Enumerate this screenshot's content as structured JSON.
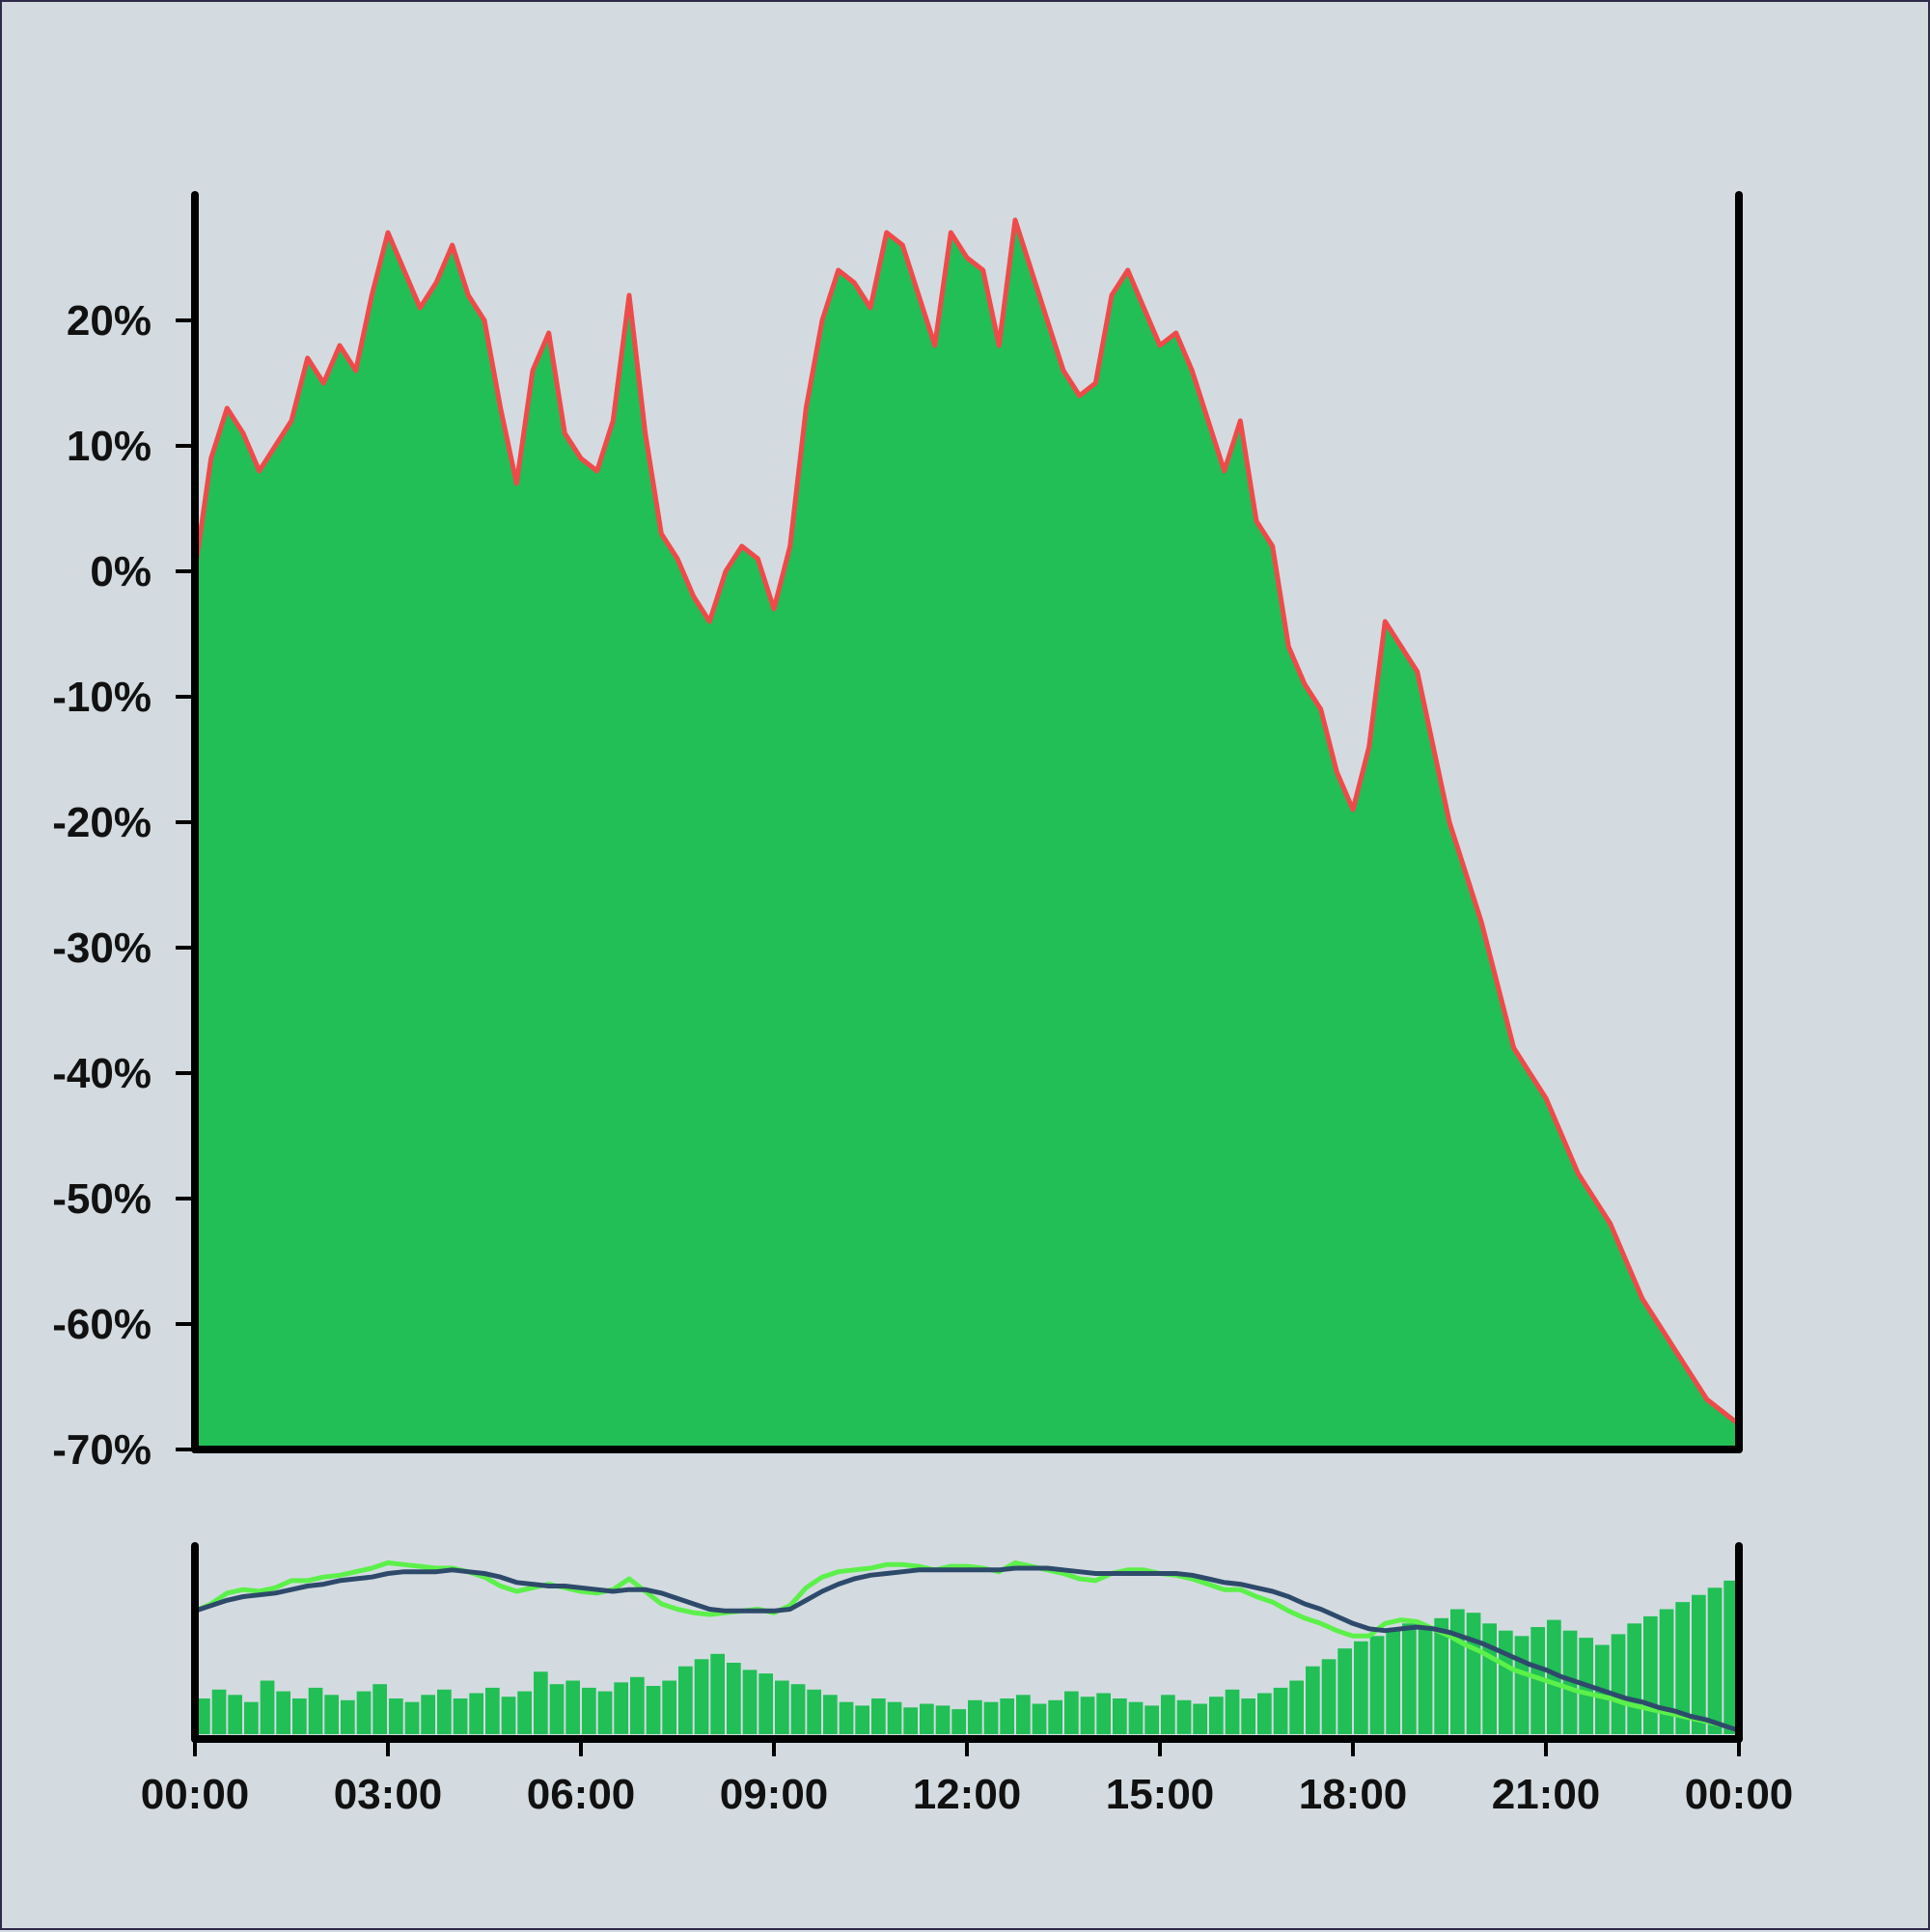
{
  "colors": {
    "background": "#d3dbe0",
    "area_fill": "#21bf56",
    "price_line": "#ef4a4a",
    "volume_bars": "#21bf56",
    "fast_ma": "#5cf04a",
    "slow_ma": "#2e4a6b",
    "axis": "#000000"
  },
  "chart_data": [
    {
      "type": "area",
      "y_tick_labels": [
        "20%",
        "10%",
        "0%",
        "-10%",
        "-20%",
        "-30%",
        "-40%",
        "-50%",
        "-60%",
        "-70%"
      ],
      "y_ticks": [
        20,
        10,
        0,
        -10,
        -20,
        -30,
        -40,
        -50,
        -60,
        -70
      ],
      "ylim": [
        -70,
        30
      ],
      "xlim_hours": [
        0,
        24
      ],
      "grid": false,
      "series": [
        {
          "x_hours": [
            0,
            0.25,
            0.5,
            0.75,
            1,
            1.25,
            1.5,
            1.75,
            2,
            2.25,
            2.5,
            2.75,
            3,
            3.25,
            3.5,
            3.75,
            4,
            4.25,
            4.5,
            4.75,
            5,
            5.25,
            5.5,
            5.75,
            6,
            6.25,
            6.5,
            6.75,
            7,
            7.25,
            7.5,
            7.75,
            8,
            8.25,
            8.5,
            8.75,
            9,
            9.25,
            9.5,
            9.75,
            10,
            10.25,
            10.5,
            10.75,
            11,
            11.25,
            11.5,
            11.75,
            12,
            12.25,
            12.5,
            12.75,
            13,
            13.25,
            13.5,
            13.75,
            14,
            14.25,
            14.5,
            14.75,
            15,
            15.25,
            15.5,
            15.75,
            16,
            16.25,
            16.5,
            16.75,
            17,
            17.25,
            17.5,
            17.75,
            18,
            18.25,
            18.5,
            18.75,
            19,
            19.25,
            19.5,
            19.75,
            20,
            20.25,
            20.5,
            20.75,
            21,
            21.25,
            21.5,
            21.75,
            22,
            22.25,
            22.5,
            22.75,
            23,
            23.25,
            23.5,
            23.75,
            24
          ],
          "values": [
            0,
            9,
            13,
            11,
            8,
            10,
            12,
            17,
            15,
            18,
            16,
            22,
            27,
            24,
            21,
            23,
            26,
            22,
            20,
            13,
            7,
            16,
            19,
            11,
            9,
            8,
            12,
            22,
            11,
            3,
            1,
            -2,
            -4,
            0,
            2,
            1,
            -3,
            2,
            13,
            20,
            24,
            23,
            21,
            27,
            26,
            22,
            18,
            27,
            25,
            24,
            18,
            28,
            24,
            20,
            16,
            14,
            15,
            22,
            24,
            21,
            18,
            19,
            16,
            12,
            8,
            12,
            4,
            2,
            -6,
            -9,
            -11,
            -16,
            -19,
            -14,
            -4,
            -6,
            -8,
            -14,
            -20,
            -24,
            -28,
            -33,
            -38,
            -40,
            -42,
            -45,
            -48,
            -50,
            -52,
            -55,
            -58,
            -60,
            -62,
            -64,
            -66,
            -67,
            -68
          ]
        }
      ]
    },
    {
      "type": "bar",
      "x_tick_labels": [
        "00:00",
        "03:00",
        "06:00",
        "09:00",
        "12:00",
        "15:00",
        "18:00",
        "21:00",
        "00:00"
      ],
      "x_ticks_hours": [
        0,
        3,
        6,
        9,
        12,
        15,
        18,
        21,
        24
      ],
      "xlim_hours": [
        0,
        24
      ],
      "volume_ylim": [
        0,
        100
      ],
      "volume": [
        20,
        25,
        22,
        18,
        30,
        24,
        20,
        26,
        22,
        19,
        24,
        28,
        20,
        18,
        22,
        25,
        20,
        23,
        26,
        21,
        24,
        35,
        28,
        30,
        26,
        24,
        29,
        32,
        27,
        30,
        38,
        42,
        45,
        40,
        36,
        34,
        30,
        28,
        25,
        22,
        18,
        16,
        20,
        18,
        15,
        17,
        16,
        14,
        19,
        18,
        20,
        22,
        17,
        19,
        24,
        21,
        23,
        20,
        18,
        16,
        22,
        19,
        17,
        21,
        25,
        20,
        23,
        26,
        30,
        38,
        42,
        48,
        52,
        55,
        58,
        62,
        60,
        65,
        70,
        68,
        62,
        58,
        55,
        60,
        64,
        58,
        54,
        50,
        56,
        62,
        66,
        70,
        74,
        78,
        82,
        86
      ],
      "lines_scale": [
        -70,
        30
      ],
      "lines": [
        {
          "values": [
            -1,
            3,
            9,
            11,
            10,
            12,
            16,
            16,
            18,
            19,
            21,
            23,
            26,
            25,
            24,
            23,
            23,
            21,
            18,
            13,
            10,
            12,
            14,
            12,
            10,
            9,
            11,
            17,
            10,
            3,
            0,
            -2,
            -3,
            -2,
            -1,
            0,
            -2,
            2,
            12,
            18,
            21,
            22,
            23,
            25,
            25,
            24,
            22,
            24,
            24,
            23,
            21,
            26,
            24,
            22,
            20,
            17,
            16,
            20,
            22,
            22,
            20,
            19,
            17,
            14,
            11,
            11,
            7,
            4,
            -1,
            -5,
            -8,
            -12,
            -15,
            -15,
            -8,
            -6,
            -7,
            -11,
            -15,
            -20,
            -24,
            -29,
            -34,
            -37,
            -40,
            -43,
            -46,
            -48,
            -50,
            -53,
            -55,
            -57,
            -59,
            -61,
            -63,
            -65,
            -68
          ]
        },
        {
          "values": [
            -1,
            2,
            5,
            7,
            8,
            9,
            11,
            13,
            14,
            16,
            17,
            18,
            20,
            21,
            21,
            21,
            22,
            21,
            20,
            18,
            15,
            14,
            13,
            13,
            12,
            11,
            10,
            11,
            11,
            9,
            6,
            3,
            0,
            -1,
            -1,
            -1,
            -1,
            0,
            5,
            10,
            14,
            17,
            19,
            20,
            21,
            22,
            22,
            22,
            22,
            22,
            22,
            23,
            23,
            23,
            22,
            21,
            20,
            20,
            20,
            20,
            20,
            20,
            19,
            17,
            15,
            14,
            12,
            10,
            7,
            3,
            0,
            -4,
            -8,
            -11,
            -12,
            -11,
            -10,
            -11,
            -13,
            -16,
            -19,
            -23,
            -27,
            -31,
            -34,
            -38,
            -41,
            -44,
            -47,
            -50,
            -52,
            -55,
            -57,
            -60,
            -62,
            -65,
            -68
          ]
        }
      ]
    }
  ]
}
